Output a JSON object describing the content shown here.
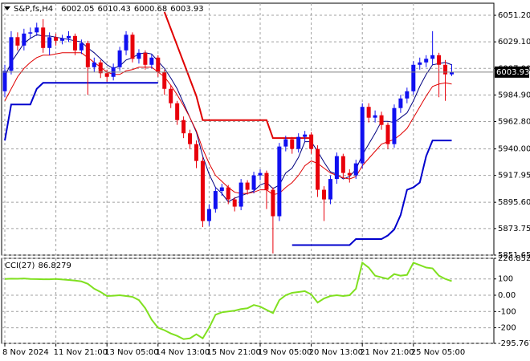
{
  "chart_data": [
    {
      "type": "candlestick",
      "title": "S&P,fs,H4",
      "categories": [
        "8 Nov 2024",
        null,
        null,
        null,
        null,
        null,
        null,
        null,
        "11 Nov 21:00",
        null,
        null,
        null,
        null,
        null,
        null,
        null,
        "13 Nov 05:00",
        null,
        null,
        null,
        null,
        null,
        null,
        null,
        "14 Nov 13:00",
        null,
        null,
        null,
        null,
        null,
        null,
        null,
        "15 Nov 21:00",
        null,
        null,
        null,
        null,
        null,
        null,
        null,
        "19 Nov 05:00",
        null,
        null,
        null,
        null,
        null,
        null,
        null,
        "20 Nov 13:00",
        null,
        null,
        null,
        null,
        null,
        null,
        null,
        "21 Nov 21:00",
        null,
        null,
        null,
        null,
        null,
        null,
        null,
        "25 Nov 05:00",
        null,
        null,
        null,
        null,
        null,
        null
      ],
      "open": [
        5988,
        6005,
        6033,
        6026,
        6036,
        6037,
        6041,
        6024,
        6033,
        6030,
        6032,
        6034,
        6022,
        6028,
        6008,
        6012,
        6003,
        6000,
        6008,
        6022,
        6035,
        6015,
        6020,
        6010,
        6016,
        6004,
        5990,
        5978,
        5964,
        5953,
        5944,
        5930,
        5880,
        5890,
        5905,
        5908,
        5898,
        5892,
        5912,
        5906,
        5918,
        5920,
        5906,
        5884,
        5942,
        5948,
        5940,
        5950,
        5952,
        5940,
        5906,
        5898,
        5915,
        5934,
        5920,
        5918,
        5928,
        5975,
        5966,
        5968,
        5960,
        5944,
        5974,
        5982,
        5988,
        6010,
        6012,
        6015,
        6018,
        6010,
        6002.05
      ],
      "high": [
        6010,
        6038,
        6037,
        6040,
        6041,
        6045,
        6048,
        6037,
        6036,
        6035,
        6038,
        6036,
        6031,
        6030,
        6016,
        6014,
        6006,
        6011,
        6025,
        6038,
        6037,
        6023,
        6022,
        6019,
        6018,
        6006,
        5993,
        5980,
        5967,
        5956,
        5947,
        5933,
        5894,
        5908,
        5911,
        5910,
        5900,
        5915,
        5914,
        5921,
        5923,
        5922,
        5908,
        5945,
        5951,
        5950,
        5953,
        5955,
        5954,
        5943,
        5909,
        5918,
        5937,
        5936,
        5923,
        5931,
        5978,
        5978,
        5972,
        5971,
        5962,
        5977,
        5985,
        5991,
        6013,
        6016,
        6018,
        6038,
        6020,
        6014,
        6010.43
      ],
      "low": [
        5983,
        6002,
        6022,
        6022,
        6032,
        6034,
        6020,
        6018,
        6026,
        6027,
        6029,
        6018,
        6019,
        5985,
        6004,
        5999,
        5996,
        5997,
        6005,
        6018,
        6012,
        6011,
        6006,
        6007,
        6000,
        5985,
        5974,
        5960,
        5949,
        5940,
        5924,
        5875,
        5876,
        5887,
        5901,
        5894,
        5888,
        5889,
        5902,
        5903,
        5914,
        5890,
        5853,
        5880,
        5938,
        5936,
        5937,
        5946,
        5936,
        5900,
        5880,
        5894,
        5911,
        5916,
        5912,
        5915,
        5924,
        5962,
        5962,
        5956,
        5940,
        5941,
        5970,
        5978,
        5985,
        6006,
        6008,
        6010,
        5983,
        5980,
        6000.68
      ],
      "close": [
        6005,
        6033,
        6026,
        6036,
        6037,
        6041,
        6024,
        6033,
        6030,
        6032,
        6034,
        6022,
        6028,
        6008,
        6012,
        6003,
        6000,
        6008,
        6022,
        6035,
        6015,
        6020,
        6010,
        6016,
        6004,
        5990,
        5978,
        5964,
        5953,
        5944,
        5930,
        5880,
        5890,
        5905,
        5908,
        5898,
        5892,
        5912,
        5906,
        5918,
        5920,
        5906,
        5884,
        5942,
        5948,
        5940,
        5950,
        5952,
        5940,
        5906,
        5898,
        5915,
        5934,
        5920,
        5918,
        5928,
        5975,
        5966,
        5968,
        5960,
        5944,
        5974,
        5982,
        5988,
        6010,
        6012,
        6015,
        6018,
        6010,
        6002.05,
        6003.93
      ],
      "up_color": "#1010f0",
      "down_color": "#e8000b",
      "series": [
        {
          "color": "#000080",
          "width": 1,
          "values": [
            6000,
            6012,
            6020,
            6028,
            6032,
            6035,
            6034,
            6034,
            6033,
            6032,
            6031,
            6030,
            6029,
            6024,
            6020,
            6015,
            6010,
            6007,
            6009,
            6014,
            6016,
            6019,
            6020,
            6019,
            6013,
            6007,
            5999,
            5990,
            5978,
            5966,
            5954,
            5934,
            5919,
            5908,
            5903,
            5896,
            5899,
            5901,
            5903,
            5905,
            5910,
            5912,
            5907,
            5910,
            5920,
            5924,
            5933,
            5946,
            5946,
            5938,
            5929,
            5921,
            5919,
            5915,
            5917,
            5923,
            5935,
            5944,
            5953,
            5963,
            5963,
            5962,
            5966,
            5970,
            5980,
            5992,
            6002,
            6010,
            6011,
            6012,
            6010
          ]
        },
        {
          "color": "#e00000",
          "width": 1,
          "values": [
            5980,
            5990,
            6000,
            6007,
            6012,
            6016,
            6018,
            6018,
            6019,
            6020,
            6020,
            6020,
            6020,
            6016,
            6012,
            6008,
            6004,
            6002,
            6002,
            6005,
            6006,
            6008,
            6008,
            6008,
            6004,
            6000,
            5993,
            5985,
            5976,
            5966,
            5955,
            5940,
            5928,
            5918,
            5913,
            5908,
            5904,
            5903,
            5903,
            5904,
            5906,
            5906,
            5902,
            5903,
            5908,
            5912,
            5918,
            5926,
            5930,
            5928,
            5924,
            5920,
            5918,
            5916,
            5915,
            5917,
            5926,
            5932,
            5938,
            5944,
            5946,
            5948,
            5952,
            5957,
            5966,
            5975,
            5984,
            5992,
            5994,
            5995,
            5994
          ]
        },
        {
          "color": "#e00000",
          "width": 2,
          "values": [
            null,
            null,
            null,
            null,
            null,
            null,
            null,
            null,
            null,
            null,
            null,
            null,
            null,
            null,
            null,
            null,
            null,
            null,
            null,
            null,
            null,
            null,
            null,
            null,
            null,
            6054,
            6040,
            6026,
            6012,
            5998,
            5984,
            5964,
            5964,
            5964,
            5964,
            5964,
            5964,
            5964,
            5964,
            5964,
            5964,
            5964,
            5949,
            5949,
            5949,
            5949,
            5949,
            5949,
            5949,
            null,
            null,
            null,
            null,
            null,
            null,
            null,
            null,
            null,
            null,
            null,
            null,
            null,
            null,
            null,
            null,
            null,
            null,
            null,
            null,
            null,
            null
          ]
        },
        {
          "color": "#0000cd",
          "width": 2,
          "values": [
            5947,
            5977,
            5977,
            5977,
            5977,
            5990,
            5995,
            5995,
            5995,
            5995,
            5995,
            5995,
            5995,
            5995,
            5995,
            5995,
            5995,
            5995,
            5995,
            5995,
            5995,
            5995,
            5995,
            5995,
            5995,
            null,
            null,
            null,
            null,
            null,
            null,
            null,
            null,
            null,
            null,
            null,
            null,
            null,
            null,
            null,
            null,
            null,
            null,
            null,
            null,
            5860,
            5860,
            5860,
            5860,
            5860,
            5860,
            5860,
            5860,
            5860,
            5860,
            5865,
            5865,
            5865,
            5865,
            5865,
            5868,
            5873,
            5885,
            5906,
            5908,
            5912,
            5934,
            5947,
            5947,
            5947,
            5947
          ]
        }
      ],
      "ylim": [
        5851.65,
        6061.25
      ],
      "yticks": [
        5851.65,
        5873.75,
        {
          "value": 5895.6,
          "label": "5895.60"
        },
        5917.95,
        {
          "value": 5940,
          "label": "5940.00"
        },
        {
          "value": 5962.8,
          "label": "5962.80"
        },
        {
          "value": 5984.9,
          "label": "5984.90"
        },
        {
          "value": 6007,
          "label": "6007.00"
        },
        {
          "value": 6029.1,
          "label": "6029.10"
        },
        {
          "value": 6051.2,
          "label": "6051.20"
        }
      ],
      "grid": true
    },
    {
      "type": "line",
      "title": "CCI(27)",
      "series": [
        {
          "color": "#80e020",
          "width": 2,
          "values": [
            100,
            102,
            101,
            103,
            100,
            99,
            98,
            98,
            100,
            97,
            94,
            90,
            85,
            70,
            40,
            20,
            -5,
            -3,
            0,
            -5,
            -10,
            -30,
            -80,
            -150,
            -200,
            -215,
            -235,
            -250,
            -270,
            -265,
            -240,
            -265,
            -200,
            -120,
            -105,
            -100,
            -95,
            -85,
            -80,
            -60,
            -70,
            -90,
            -110,
            -30,
            0,
            15,
            20,
            25,
            5,
            -45,
            -20,
            -5,
            0,
            -5,
            0,
            40,
            200,
            170,
            120,
            110,
            100,
            130,
            120,
            125,
            200,
            185,
            170,
            165,
            120,
            100,
            86.8279
          ]
        }
      ],
      "ylim": [
        -295.7671,
        226.8524
      ],
      "yticks": [
        -295.7671,
        -200,
        -100,
        {
          "value": 0,
          "label": "0.00"
        },
        100,
        226.8524
      ],
      "grid": true
    }
  ]
}
